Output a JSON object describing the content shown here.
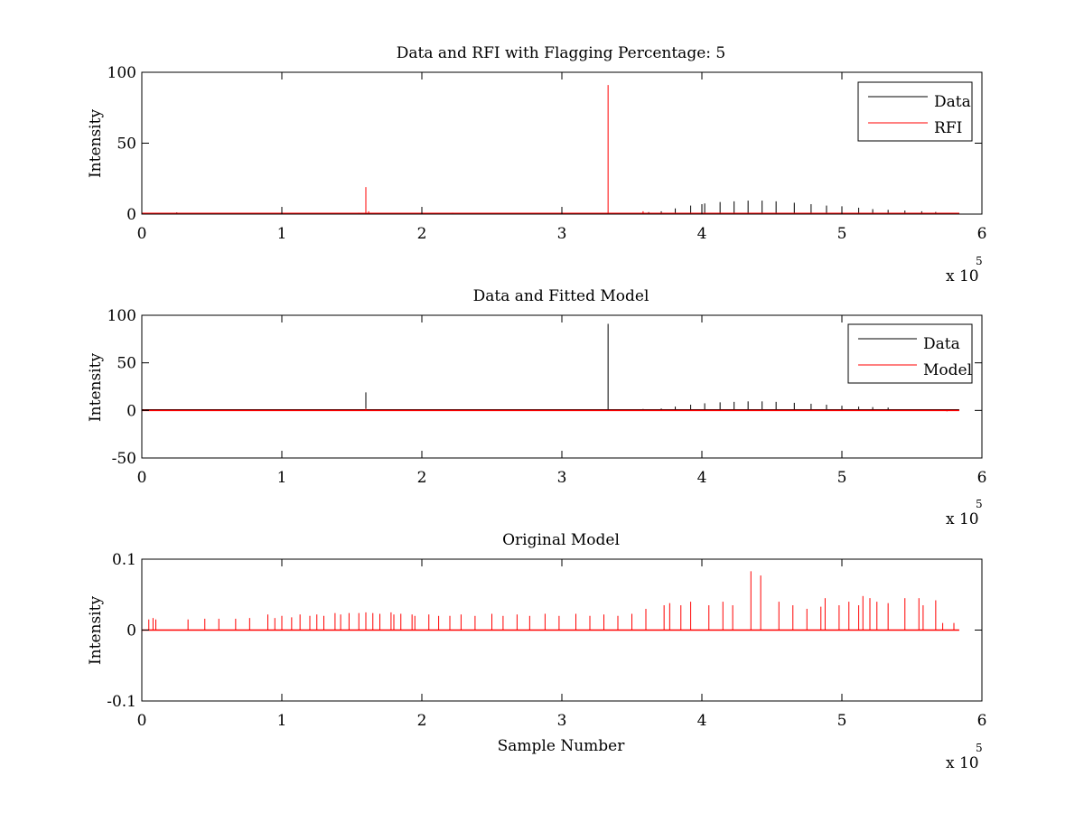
{
  "figure": {
    "background": "#ffffff"
  },
  "colors": {
    "data": "#000000",
    "red": "#ff0000",
    "axes": "#000000"
  },
  "chart_data": [
    {
      "type": "line",
      "title": "Data and RFI with Flagging Percentage: 5",
      "xlabel": "",
      "ylabel": "Intensity",
      "xlim": [
        0,
        6
      ],
      "ylim": [
        0,
        100
      ],
      "x_multiplier_label": "x 10",
      "x_multiplier_exp": "5",
      "x_ticks": [
        0,
        1,
        2,
        3,
        4,
        5,
        6
      ],
      "x_tick_labels": [
        "0",
        "1",
        "2",
        "3",
        "4",
        "5",
        "6"
      ],
      "y_ticks": [
        0,
        50,
        100
      ],
      "y_tick_labels": [
        "0",
        "50",
        "100"
      ],
      "legend": {
        "position": "top-right",
        "entries": [
          "Data",
          "RFI"
        ]
      },
      "series": [
        {
          "name": "Data",
          "color": "#000000",
          "baseline": 0.5,
          "spikes": [
            [
              0.25,
              1.2
            ],
            [
              3.58,
              1.5
            ],
            [
              3.62,
              1.4
            ],
            [
              3.71,
              2
            ],
            [
              3.81,
              4
            ],
            [
              3.92,
              6
            ],
            [
              4.0,
              7
            ],
            [
              4.02,
              7.5
            ],
            [
              4.13,
              8.5
            ],
            [
              4.23,
              9
            ],
            [
              4.33,
              9.5
            ],
            [
              4.43,
              9.5
            ],
            [
              4.53,
              9
            ],
            [
              4.66,
              8
            ],
            [
              4.78,
              7
            ],
            [
              4.89,
              6
            ],
            [
              5.0,
              5.5
            ],
            [
              5.12,
              4.5
            ],
            [
              5.22,
              3.5
            ],
            [
              5.33,
              3
            ],
            [
              5.45,
              2.5
            ],
            [
              5.57,
              2
            ],
            [
              5.67,
              1.5
            ]
          ]
        },
        {
          "name": "RFI",
          "color": "#ff0000",
          "baseline": 0.5,
          "spikes": [
            [
              1.55,
              1
            ],
            [
              1.6,
              19
            ],
            [
              1.62,
              2
            ],
            [
              2.22,
              1
            ],
            [
              3.33,
              91
            ],
            [
              3.58,
              2
            ]
          ]
        }
      ]
    },
    {
      "type": "line",
      "title": "Data and Fitted Model",
      "xlabel": "",
      "ylabel": "Intensity",
      "xlim": [
        0,
        6
      ],
      "ylim": [
        -50,
        100
      ],
      "x_multiplier_label": "x 10",
      "x_multiplier_exp": "5",
      "x_ticks": [
        0,
        1,
        2,
        3,
        4,
        5,
        6
      ],
      "x_tick_labels": [
        "0",
        "1",
        "2",
        "3",
        "4",
        "5",
        "6"
      ],
      "y_ticks": [
        -50,
        0,
        50,
        100
      ],
      "y_tick_labels": [
        "-50",
        "0",
        "50",
        "100"
      ],
      "legend": {
        "position": "top-right",
        "entries": [
          "Data",
          "Model"
        ]
      },
      "series": [
        {
          "name": "Data",
          "color": "#000000",
          "baseline": 0.5,
          "spikes": [
            [
              1.6,
              19
            ],
            [
              3.33,
              91
            ],
            [
              3.58,
              1.5
            ],
            [
              3.71,
              2
            ],
            [
              3.81,
              4
            ],
            [
              3.92,
              6
            ],
            [
              4.02,
              7.5
            ],
            [
              4.13,
              8.5
            ],
            [
              4.23,
              9
            ],
            [
              4.33,
              9.5
            ],
            [
              4.43,
              9.5
            ],
            [
              4.53,
              9
            ],
            [
              4.66,
              8
            ],
            [
              4.78,
              7
            ],
            [
              4.89,
              6
            ],
            [
              5.0,
              5
            ],
            [
              5.12,
              4
            ],
            [
              5.22,
              3.5
            ],
            [
              5.33,
              3
            ]
          ]
        },
        {
          "name": "Model",
          "color": "#ff0000",
          "baseline": 0,
          "spikes": [
            [
              0.02,
              1
            ],
            [
              1.6,
              2
            ],
            [
              5.75,
              -1
            ]
          ]
        }
      ]
    },
    {
      "type": "line",
      "title": "Original Model",
      "xlabel": "Sample Number",
      "ylabel": "Intensity",
      "xlim": [
        0,
        6
      ],
      "ylim": [
        -0.1,
        0.1
      ],
      "x_multiplier_label": "x 10",
      "x_multiplier_exp": "5",
      "x_ticks": [
        0,
        1,
        2,
        3,
        4,
        5,
        6
      ],
      "x_tick_labels": [
        "0",
        "1",
        "2",
        "3",
        "4",
        "5",
        "6"
      ],
      "y_ticks": [
        -0.1,
        0,
        0.1
      ],
      "y_tick_labels": [
        "-0.1",
        "0",
        "0.1"
      ],
      "legend": null,
      "series": [
        {
          "color": "#ff0000",
          "baseline": 0,
          "spikes": [
            [
              0.05,
              0.015
            ],
            [
              0.08,
              0.017
            ],
            [
              0.1,
              0.015
            ],
            [
              0.33,
              0.015
            ],
            [
              0.45,
              0.016
            ],
            [
              0.55,
              0.016
            ],
            [
              0.67,
              0.016
            ],
            [
              0.77,
              0.017
            ],
            [
              0.9,
              0.022
            ],
            [
              0.95,
              0.017
            ],
            [
              1.0,
              0.02
            ],
            [
              1.07,
              0.018
            ],
            [
              1.13,
              0.022
            ],
            [
              1.2,
              0.02
            ],
            [
              1.25,
              0.022
            ],
            [
              1.3,
              0.02
            ],
            [
              1.38,
              0.024
            ],
            [
              1.42,
              0.022
            ],
            [
              1.48,
              0.024
            ],
            [
              1.55,
              0.024
            ],
            [
              1.6,
              0.025
            ],
            [
              1.65,
              0.024
            ],
            [
              1.7,
              0.023
            ],
            [
              1.78,
              0.025
            ],
            [
              1.8,
              0.022
            ],
            [
              1.85,
              0.023
            ],
            [
              1.93,
              0.022
            ],
            [
              1.95,
              0.02
            ],
            [
              2.05,
              0.022
            ],
            [
              2.12,
              0.02
            ],
            [
              2.2,
              0.02
            ],
            [
              2.28,
              0.022
            ],
            [
              2.38,
              0.02
            ],
            [
              2.5,
              0.023
            ],
            [
              2.58,
              0.02
            ],
            [
              2.68,
              0.022
            ],
            [
              2.77,
              0.02
            ],
            [
              2.88,
              0.023
            ],
            [
              2.98,
              0.02
            ],
            [
              3.1,
              0.023
            ],
            [
              3.2,
              0.02
            ],
            [
              3.3,
              0.022
            ],
            [
              3.4,
              0.02
            ],
            [
              3.5,
              0.023
            ],
            [
              3.6,
              0.03
            ],
            [
              3.73,
              0.035
            ],
            [
              3.77,
              0.038
            ],
            [
              3.85,
              0.035
            ],
            [
              3.92,
              0.04
            ],
            [
              4.05,
              0.035
            ],
            [
              4.15,
              0.04
            ],
            [
              4.22,
              0.035
            ],
            [
              4.35,
              0.083
            ],
            [
              4.42,
              0.077
            ],
            [
              4.55,
              0.04
            ],
            [
              4.65,
              0.035
            ],
            [
              4.75,
              0.03
            ],
            [
              4.85,
              0.033
            ],
            [
              4.88,
              0.045
            ],
            [
              4.98,
              0.035
            ],
            [
              5.05,
              0.04
            ],
            [
              5.12,
              0.035
            ],
            [
              5.15,
              0.048
            ],
            [
              5.2,
              0.045
            ],
            [
              5.25,
              0.04
            ],
            [
              5.33,
              0.038
            ],
            [
              5.45,
              0.045
            ],
            [
              5.55,
              0.045
            ],
            [
              5.58,
              0.035
            ],
            [
              5.67,
              0.042
            ],
            [
              5.72,
              0.01
            ],
            [
              5.8,
              0.01
            ]
          ]
        }
      ]
    }
  ]
}
